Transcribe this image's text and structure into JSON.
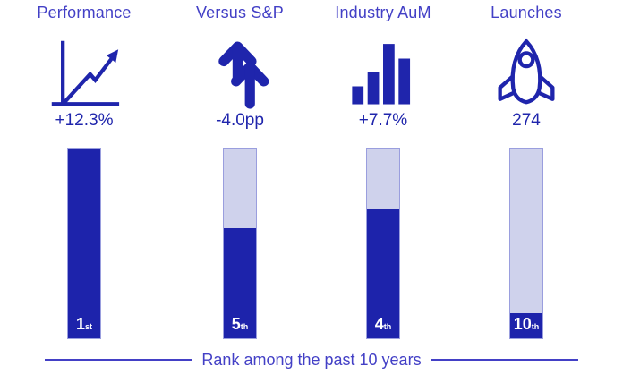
{
  "colors": {
    "dark_blue": "#1d23ab",
    "header_blue": "#4340c6",
    "light_lavender": "#cfd2ec",
    "track_border": "#9a9ede",
    "rank_text": "#ffffff"
  },
  "columns": [
    {
      "label": "Performance",
      "icon": "line-chart-icon",
      "value": "+12.3%",
      "rank_value": "1",
      "rank_suffix": "st",
      "fill_percent": 100
    },
    {
      "label": "Versus S&P",
      "icon": "double-up-arrows-icon",
      "value": "-4.0pp",
      "rank_value": "5",
      "rank_suffix": "th",
      "fill_percent": 58
    },
    {
      "label": "Industry AuM",
      "icon": "bar-chart-icon",
      "value": "+7.7%",
      "rank_value": "4",
      "rank_suffix": "th",
      "fill_percent": 68
    },
    {
      "label": "Launches",
      "icon": "rocket-icon",
      "value": "274",
      "rank_value": "10",
      "rank_suffix": "th",
      "fill_percent": 13
    }
  ],
  "footer": {
    "caption": "Rank among the past 10 years"
  },
  "chart_data": {
    "type": "bar",
    "categories": [
      "Performance",
      "Versus S&P",
      "Industry AuM",
      "Launches"
    ],
    "metric_values": [
      "+12.3%",
      "-4.0pp",
      "+7.7%",
      "274"
    ],
    "ranks": [
      "1st",
      "5th",
      "4th",
      "10th"
    ],
    "series": [
      {
        "name": "rank-fill-fraction",
        "values": [
          1.0,
          0.58,
          0.68,
          0.13
        ]
      }
    ],
    "title": "",
    "xlabel": "Rank among the past 10 years",
    "ylabel": "",
    "ylim": [
      0,
      1
    ],
    "grid": false,
    "legend": "none",
    "note": "Each column: metric icon, metric value, and a vertical gauge bar whose dark fill reflects rank among the past 10 years (1st = full, 10th = nearly empty)."
  }
}
